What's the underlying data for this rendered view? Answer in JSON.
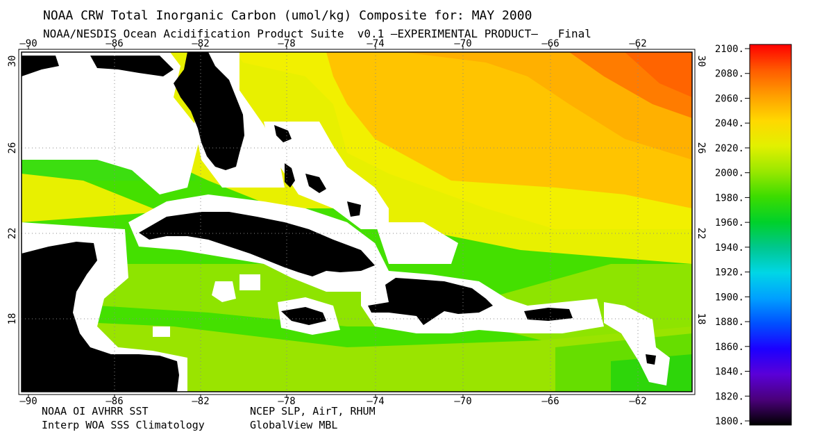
{
  "title": "NOAA CRW Total Inorganic Carbon (umol/kg) Composite for: MAY 2000",
  "subtitle": "NOAA/NESDIS Ocean Acidification Product Suite  v0.1 –EXPERIMENTAL PRODUCT–   Final",
  "lon_ticks": [
    "–90",
    "–86",
    "–82",
    "–78",
    "–74",
    "–70",
    "–66",
    "–62"
  ],
  "lat_ticks": [
    "30",
    "26",
    "22",
    "18"
  ],
  "colorbar": {
    "labels": [
      "2100.",
      "2080.",
      "2060.",
      "2040.",
      "2020.",
      "2000.",
      "1980.",
      "1960.",
      "1940.",
      "1920.",
      "1900.",
      "1880.",
      "1860.",
      "1840.",
      "1820.",
      "1800."
    ],
    "colors": [
      "#ff0000",
      "#ff5a00",
      "#ff9d00",
      "#ffd800",
      "#e2f000",
      "#9ae800",
      "#3cdc00",
      "#00d12a",
      "#00c78e",
      "#00d6e6",
      "#00a0ff",
      "#0050ff",
      "#1c00ff",
      "#5a00d8",
      "#4a007a",
      "#000000"
    ]
  },
  "credits": {
    "line1_left": "NOAA OI AVHRR SST",
    "line1_right": "NCEP SLP, AirT, RHUM",
    "line2_left": "Interp WOA SSS Climatology",
    "line2_right": "GlobalView MBL"
  }
}
